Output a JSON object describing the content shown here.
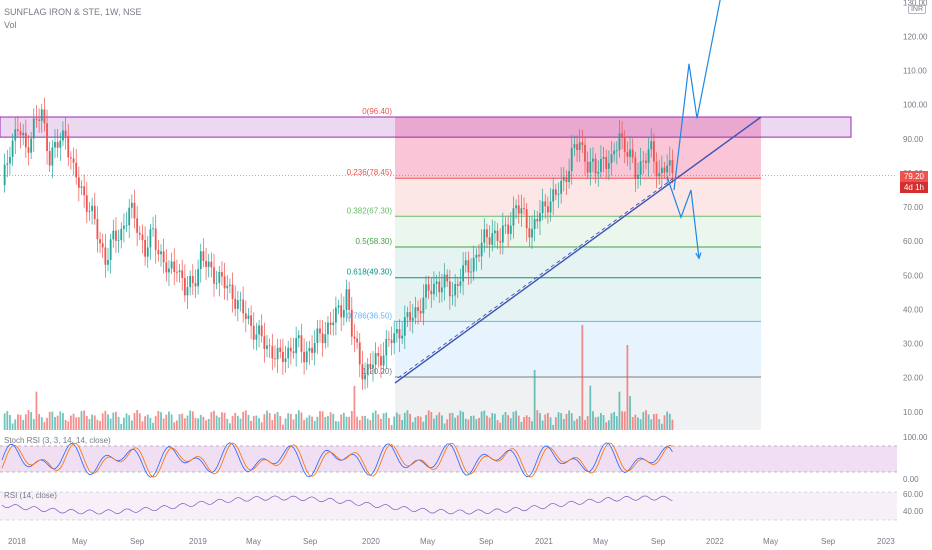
{
  "header": {
    "symbol_line": "SUNFLAG IRON & STE, 1W, NSE",
    "volume_label": "Vol",
    "currency": "INR",
    "last_price": "79.20",
    "countdown": "4d 1h"
  },
  "indicators": {
    "stoch_label": "Stoch RSI (3, 3, 14, 14, close)",
    "stoch_axis": [
      "100.00",
      "0.00"
    ],
    "rsi_label": "RSI (14, close)",
    "rsi_axis": [
      "60.00",
      "40.00"
    ]
  },
  "fib_levels": [
    {
      "label": "0(96.40)",
      "value": 96.4,
      "color": "#ef5350"
    },
    {
      "label": "0.236(78.45)",
      "value": 78.45,
      "color": "#ef5350"
    },
    {
      "label": "0.382(67.30)",
      "value": 67.3,
      "color": "#66bb6a"
    },
    {
      "label": "0.5(58.30)",
      "value": 58.3,
      "color": "#43a047"
    },
    {
      "label": "0.618(49.30)",
      "value": 49.3,
      "color": "#009688"
    },
    {
      "label": "0.786(36.50)",
      "value": 36.5,
      "color": "#64b5f6"
    },
    {
      "label": "1(20.20)",
      "value": 20.2,
      "color": "#787b86"
    }
  ],
  "chart_data": {
    "type": "candlestick",
    "title": "SUNFLAG IRON & STE, 1W, NSE",
    "y_ticks": [
      10,
      20,
      30,
      40,
      50,
      60,
      70,
      80,
      90,
      100,
      110,
      120,
      130
    ],
    "y_tick_labels": [
      "10.00",
      "20.00",
      "30.00",
      "40.00",
      "50.00",
      "60.00",
      "70.00",
      "80.00",
      "90.00",
      "100.00",
      "110.00",
      "120.00",
      "130.00"
    ],
    "x_ticks": [
      "2018",
      "May",
      "Sep",
      "2019",
      "May",
      "Sep",
      "2020",
      "May",
      "Sep",
      "2021",
      "May",
      "Sep",
      "2022",
      "May",
      "Sep",
      "2023"
    ],
    "resistance_zone": [
      90.5,
      96.4
    ],
    "price_anchors": [
      [
        0,
        75
      ],
      [
        3,
        88
      ],
      [
        6,
        93
      ],
      [
        9,
        87
      ],
      [
        12,
        94
      ],
      [
        15,
        97
      ],
      [
        18,
        85
      ],
      [
        21,
        88
      ],
      [
        24,
        92
      ],
      [
        27,
        80
      ],
      [
        30,
        75
      ],
      [
        33,
        70
      ],
      [
        36,
        62
      ],
      [
        39,
        55
      ],
      [
        42,
        60
      ],
      [
        45,
        63
      ],
      [
        48,
        69
      ],
      [
        51,
        65
      ],
      [
        54,
        57
      ],
      [
        57,
        62
      ],
      [
        60,
        56
      ],
      [
        63,
        50
      ],
      [
        66,
        54
      ],
      [
        69,
        45
      ],
      [
        72,
        48
      ],
      [
        75,
        55
      ],
      [
        78,
        52
      ],
      [
        81,
        50
      ],
      [
        84,
        47
      ],
      [
        87,
        45
      ],
      [
        90,
        40
      ],
      [
        93,
        37
      ],
      [
        96,
        33
      ],
      [
        99,
        30
      ],
      [
        102,
        28
      ],
      [
        105,
        25
      ],
      [
        108,
        28
      ],
      [
        111,
        30
      ],
      [
        114,
        27
      ],
      [
        117,
        29
      ],
      [
        120,
        32
      ],
      [
        123,
        35
      ],
      [
        126,
        38
      ],
      [
        128,
        40
      ],
      [
        130,
        45
      ],
      [
        132,
        33
      ],
      [
        135,
        25
      ],
      [
        137,
        21
      ],
      [
        140,
        24
      ],
      [
        143,
        27
      ],
      [
        146,
        30
      ],
      [
        149,
        33
      ],
      [
        152,
        36
      ],
      [
        155,
        38
      ],
      [
        158,
        42
      ],
      [
        161,
        45
      ],
      [
        164,
        48
      ],
      [
        167,
        47
      ],
      [
        170,
        45
      ],
      [
        173,
        50
      ],
      [
        176,
        52
      ],
      [
        179,
        56
      ],
      [
        182,
        60
      ],
      [
        185,
        63
      ],
      [
        188,
        60
      ],
      [
        191,
        65
      ],
      [
        194,
        70
      ],
      [
        197,
        67
      ],
      [
        200,
        63
      ],
      [
        203,
        68
      ],
      [
        206,
        72
      ],
      [
        209,
        73
      ],
      [
        212,
        78
      ],
      [
        215,
        85
      ],
      [
        218,
        89
      ],
      [
        221,
        83
      ],
      [
        224,
        80
      ],
      [
        227,
        85
      ],
      [
        230,
        82
      ],
      [
        233,
        92
      ],
      [
        236,
        86
      ],
      [
        239,
        80
      ],
      [
        242,
        84
      ],
      [
        245,
        86
      ],
      [
        248,
        80
      ],
      [
        251,
        82
      ],
      [
        253,
        79.2
      ]
    ],
    "projection_up": [
      [
        79,
        75
      ],
      [
        94,
        112
      ],
      [
        102,
        96
      ],
      [
        128,
        135
      ]
    ],
    "projection_down": [
      [
        72,
        79
      ],
      [
        86,
        67
      ],
      [
        96,
        75
      ],
      [
        104,
        55
      ]
    ],
    "last_price": 79.2
  }
}
